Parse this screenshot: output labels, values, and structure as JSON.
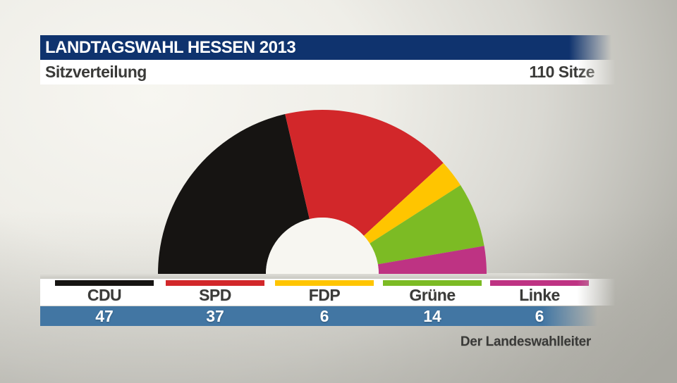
{
  "header": {
    "title": "LANDTAGSWAHL HESSEN 2013"
  },
  "subheader": {
    "title": "Sitzverteilung",
    "total_label": "110 Sitze"
  },
  "footer": {
    "source": "Der Landeswahlleiter"
  },
  "colors": {
    "header_bar": "#0F336E",
    "numbers_bar": "#4276A3",
    "panel_white": "#FFFFFF",
    "floor_strip": "#D6D5CF",
    "donut_hole": "#F7F6F1",
    "text_dark": "#3A3A38"
  },
  "chart_data": {
    "type": "pie",
    "variant": "half-donut",
    "title": "Sitzverteilung",
    "total": 110,
    "total_label": "110 Sitze",
    "categories": [
      "CDU",
      "SPD",
      "FDP",
      "Grüne",
      "Linke"
    ],
    "values": [
      47,
      37,
      6,
      14,
      6
    ],
    "colors": [
      "#161412",
      "#D2272A",
      "#FFC500",
      "#7CBB24",
      "#BE3383"
    ],
    "legend_position": "bottom"
  }
}
